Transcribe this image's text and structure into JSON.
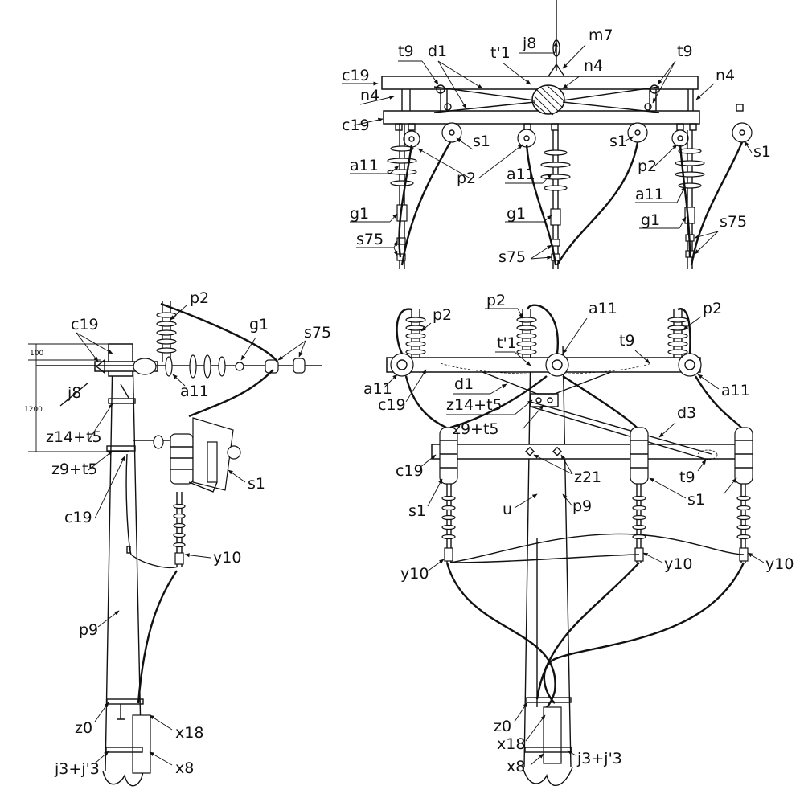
{
  "top_view": {
    "labels": {
      "j8": "j8",
      "m7": "m7",
      "t9_left": "t9",
      "d1": "d1",
      "t1p": "t'1",
      "n4_center": "n4",
      "t9_right": "t9",
      "c19_top": "c19",
      "n4_left": "n4",
      "n4_right": "n4",
      "c19_bottom": "c19",
      "s1_a": "s1",
      "s1_b": "s1",
      "s1_c": "s1",
      "a11_left": "a11",
      "p2_center": "p2",
      "a11_center": "a11",
      "p2_right": "p2",
      "a11_right": "a11",
      "g1_left": "g1",
      "g1_center": "g1",
      "g1_right": "g1",
      "s75_left": "s75",
      "s75_center": "s75",
      "s75_right": "s75"
    }
  },
  "side_view": {
    "labels": {
      "c19_top": "c19",
      "p2": "p2",
      "g1": "g1",
      "s75": "s75",
      "j8": "j8",
      "a11": "a11",
      "z14t5": "z14+t5",
      "z9t5": "z9+t5",
      "s1": "s1",
      "c19_mid": "c19",
      "y10": "y10",
      "p9": "p9",
      "z0": "z0",
      "x18": "x18",
      "j3j3": "j3+j'3",
      "x8": "x8"
    },
    "dimensions": {
      "d100": "100",
      "d1200": "1200"
    }
  },
  "front_view": {
    "labels": {
      "p2_left": "p2",
      "p2_center": "p2",
      "a11_center": "a11",
      "p2_right": "p2",
      "t1p": "t'1",
      "t9_top": "t9",
      "a11_left": "a11",
      "a11_right": "a11",
      "d1": "d1",
      "c19_top": "c19",
      "z14t5": "z14+t5",
      "d3": "d3",
      "z9t5": "z9+t5",
      "c19_mid": "c19",
      "z21": "z21",
      "t9_mid": "t9",
      "s1_left": "s1",
      "s1_right": "s1",
      "u": "u",
      "p9": "p9",
      "y10_left": "y10",
      "y10_center": "y10",
      "y10_right": "y10",
      "z0": "z0",
      "x18": "x18",
      "x8": "x8",
      "j3j3": "j3+j'3"
    }
  }
}
